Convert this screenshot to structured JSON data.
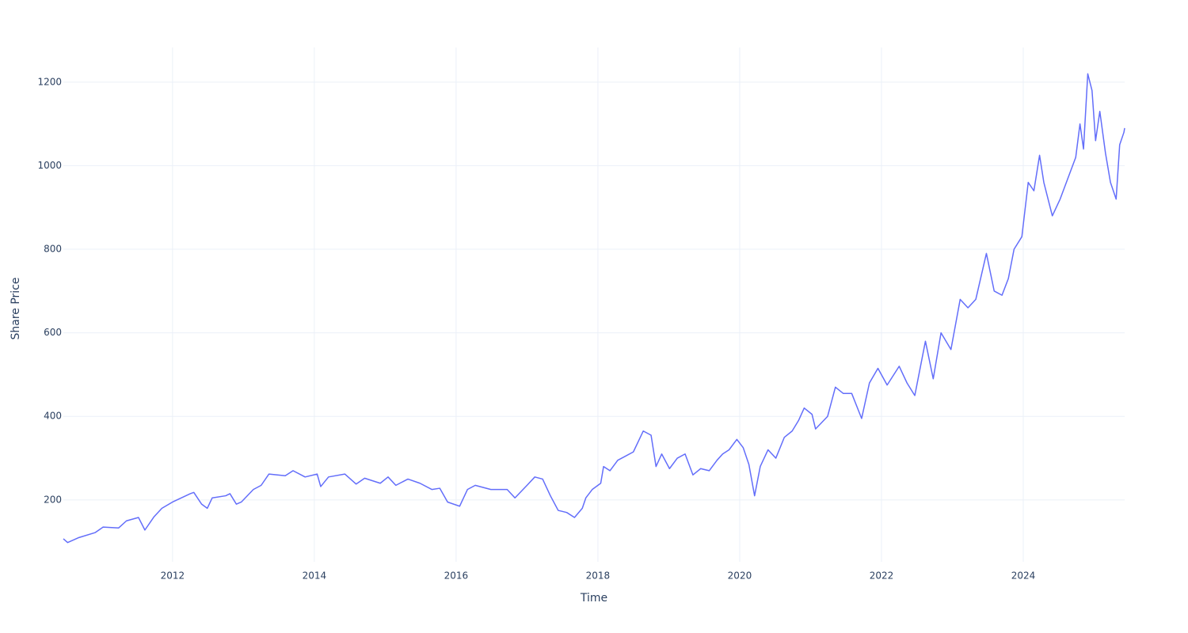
{
  "chart_data": {
    "type": "line",
    "x_label": "Time",
    "y_label": "Share Price",
    "x": [
      2010.46,
      2010.52,
      2010.68,
      2010.91,
      2011.02,
      2011.24,
      2011.35,
      2011.52,
      2011.61,
      2011.74,
      2011.85,
      2012.0,
      2012.25,
      2012.3,
      2012.41,
      2012.49,
      2012.56,
      2012.75,
      2012.81,
      2012.9,
      2012.97,
      2013.14,
      2013.25,
      2013.36,
      2013.59,
      2013.7,
      2013.87,
      2014.04,
      2014.09,
      2014.2,
      2014.43,
      2014.59,
      2014.71,
      2014.93,
      2015.04,
      2015.15,
      2015.32,
      2015.49,
      2015.66,
      2015.77,
      2015.88,
      2016.05,
      2016.16,
      2016.27,
      2016.49,
      2016.72,
      2016.83,
      2017.0,
      2017.11,
      2017.22,
      2017.33,
      2017.44,
      2017.56,
      2017.67,
      2017.78,
      2017.83,
      2017.92,
      2018.04,
      2018.08,
      2018.17,
      2018.28,
      2018.39,
      2018.5,
      2018.57,
      2018.64,
      2018.75,
      2018.82,
      2018.9,
      2019.01,
      2019.12,
      2019.23,
      2019.34,
      2019.45,
      2019.57,
      2019.68,
      2019.76,
      2019.85,
      2019.96,
      2020.05,
      2020.13,
      2020.21,
      2020.29,
      2020.4,
      2020.51,
      2020.63,
      2020.74,
      2020.83,
      2020.91,
      2021.02,
      2021.07,
      2021.24,
      2021.35,
      2021.46,
      2021.58,
      2021.72,
      2021.83,
      2021.95,
      2022.08,
      2022.25,
      2022.36,
      2022.47,
      2022.62,
      2022.73,
      2022.84,
      2022.98,
      2023.11,
      2023.22,
      2023.33,
      2023.48,
      2023.59,
      2023.7,
      2023.79,
      2023.87,
      2023.98,
      2024.07,
      2024.15,
      2024.23,
      2024.29,
      2024.41,
      2024.52,
      2024.63,
      2024.74,
      2024.8,
      2024.85,
      2024.91,
      2024.97,
      2025.02,
      2025.08,
      2025.16,
      2025.23,
      2025.31,
      2025.36,
      2025.42,
      2025.43
    ],
    "series": [
      {
        "color": "#636efa",
        "values": [
          107,
          98,
          110,
          122,
          135,
          133,
          150,
          158,
          128,
          160,
          180,
          195,
          215,
          218,
          190,
          180,
          205,
          210,
          215,
          190,
          195,
          225,
          235,
          262,
          258,
          270,
          255,
          262,
          232,
          255,
          262,
          238,
          252,
          240,
          255,
          235,
          250,
          240,
          225,
          228,
          195,
          185,
          225,
          235,
          225,
          225,
          205,
          235,
          255,
          250,
          210,
          175,
          170,
          158,
          180,
          205,
          225,
          240,
          280,
          270,
          295,
          305,
          315,
          340,
          365,
          355,
          280,
          310,
          275,
          300,
          310,
          260,
          275,
          270,
          295,
          310,
          320,
          345,
          325,
          285,
          210,
          280,
          320,
          300,
          350,
          365,
          390,
          420,
          405,
          370,
          400,
          470,
          455,
          455,
          395,
          480,
          515,
          475,
          520,
          480,
          450,
          580,
          490,
          600,
          560,
          680,
          660,
          680,
          790,
          700,
          690,
          730,
          800,
          830,
          960,
          940,
          1025,
          960,
          880,
          920,
          970,
          1020,
          1100,
          1040,
          1220,
          1180,
          1060,
          1130,
          1030,
          960,
          920,
          1050,
          1080,
          1090
        ]
      }
    ],
    "xlim": [
      2010.46,
      2025.43
    ],
    "ylim": [
      52,
      1283
    ],
    "xticks": [
      2012,
      2014,
      2016,
      2018,
      2020,
      2022,
      2024
    ],
    "yticks": [
      200,
      400,
      600,
      800,
      1000,
      1200
    ],
    "grid": true
  }
}
